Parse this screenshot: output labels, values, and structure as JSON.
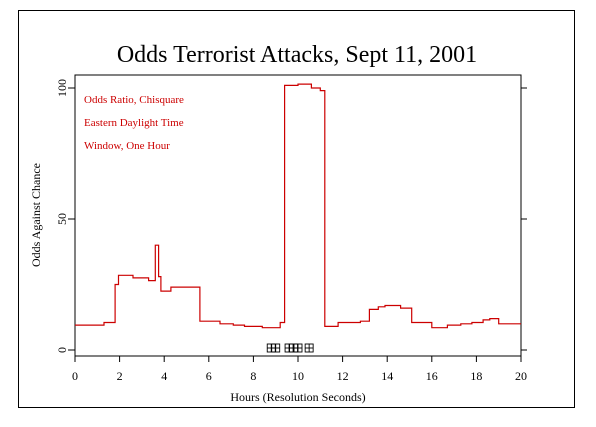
{
  "chart_data": {
    "type": "line",
    "title": "Odds Terrorist Attacks, Sept 11, 2001",
    "xlabel": "Hours (Resolution Seconds)",
    "ylabel": "Odds Against Chance",
    "xlim": [
      0,
      20
    ],
    "ylim": [
      0,
      100
    ],
    "x_ticks": [
      "0",
      "2",
      "4",
      "6",
      "8",
      "10",
      "12",
      "14",
      "16",
      "18",
      "20"
    ],
    "y_ticks": [
      "0",
      "50",
      "100"
    ],
    "annotations": [
      "Odds Ratio, Chisquare",
      "Eastern Daylight Time",
      "Window, One Hour"
    ],
    "series_color": "#cc0000",
    "marker_glyph": "⊞",
    "event_markers_x": [
      8.8,
      9.0,
      9.6,
      9.8,
      10.0,
      10.5
    ],
    "series": [
      {
        "x": [
          0,
          1.3,
          1.3,
          1.8,
          1.8,
          1.95,
          1.95,
          2.6,
          2.6,
          3.3,
          3.3,
          3.6,
          3.6,
          3.75,
          3.75,
          3.85,
          3.85,
          4.3,
          4.3,
          5.6,
          5.6,
          6.5,
          6.5,
          7.1,
          7.1,
          7.6,
          7.6,
          8.4,
          8.4,
          9.2,
          9.2,
          9.4,
          9.4,
          10.0,
          10.0,
          10.6,
          10.6,
          11.0,
          11.0,
          11.2,
          11.2,
          11.8,
          11.8,
          12.8,
          12.8,
          13.2,
          13.2,
          13.6,
          13.6,
          13.9,
          13.9,
          14.6,
          14.6,
          15.1,
          15.1,
          16.0,
          16.0,
          16.7,
          16.7,
          17.3,
          17.3,
          17.8,
          17.8,
          18.3,
          18.3,
          18.6,
          18.6,
          19.0,
          19.0,
          20.0
        ],
        "y": [
          9.5,
          9.5,
          10.5,
          10.5,
          25,
          25,
          28.5,
          28.5,
          27.5,
          27.5,
          26.5,
          26.5,
          40,
          40,
          28,
          28,
          22.5,
          22.5,
          24,
          24,
          11,
          11,
          10,
          10,
          9.5,
          9.5,
          9,
          9,
          8.5,
          8.5,
          10.5,
          10.5,
          101,
          101,
          101.5,
          101.5,
          100,
          100,
          99,
          99,
          9,
          9,
          10.5,
          10.5,
          11,
          11,
          15.5,
          15.5,
          16.5,
          16.5,
          17,
          17,
          16,
          16,
          10.5,
          10.5,
          8.5,
          8.5,
          9.5,
          9.5,
          10,
          10,
          10.5,
          10.5,
          11.5,
          11.5,
          12,
          12,
          10,
          10
        ]
      }
    ]
  }
}
